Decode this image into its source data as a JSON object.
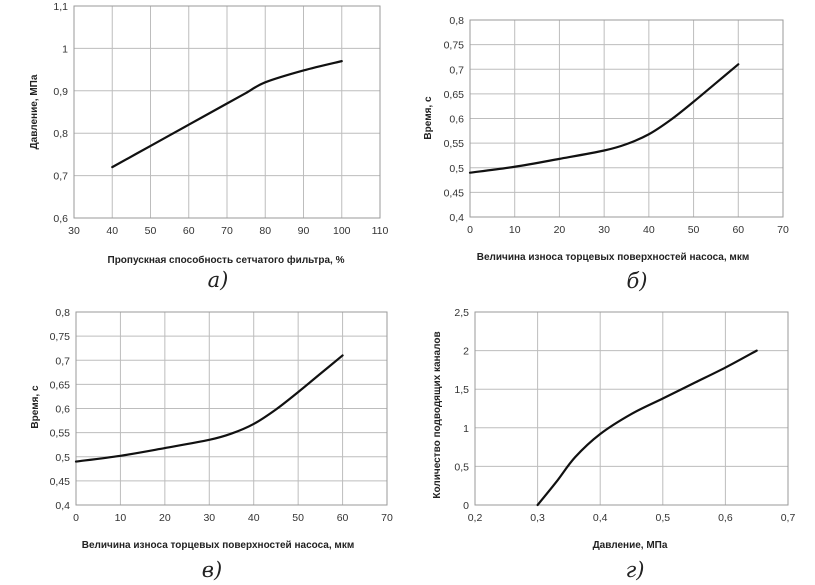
{
  "chart_data": [
    {
      "type": "line",
      "caption": "а)",
      "xlabel": "Пропускная способность сетчатого фильтра, %",
      "ylabel": "Давление, МПа",
      "xlim": [
        30,
        110
      ],
      "ylim": [
        0.6,
        1.1
      ],
      "xticks": [
        30,
        40,
        50,
        60,
        70,
        80,
        90,
        100,
        110
      ],
      "yticks": [
        0.6,
        0.7,
        0.8,
        0.9,
        1,
        1.1
      ],
      "xtick_labels": [
        "30",
        "40",
        "50",
        "60",
        "70",
        "80",
        "90",
        "100",
        "110"
      ],
      "ytick_labels": [
        "0,6",
        "0,7",
        "0,8",
        "0,9",
        "1",
        "1,1"
      ],
      "grid": true,
      "series": [
        {
          "x": [
            40,
            50,
            60,
            70,
            75,
            80,
            90,
            100
          ],
          "y": [
            0.72,
            0.77,
            0.82,
            0.87,
            0.895,
            0.92,
            0.948,
            0.97
          ]
        }
      ]
    },
    {
      "type": "line",
      "caption": "б)",
      "xlabel": "Величина износа торцевых поверхностей насоса, мкм",
      "ylabel": "Время, с",
      "xlim": [
        0,
        70
      ],
      "ylim": [
        0.4,
        0.8
      ],
      "xticks": [
        0,
        10,
        20,
        30,
        40,
        50,
        60,
        70
      ],
      "yticks": [
        0.4,
        0.45,
        0.5,
        0.55,
        0.6,
        0.65,
        0.7,
        0.75,
        0.8
      ],
      "xtick_labels": [
        "0",
        "10",
        "20",
        "30",
        "40",
        "50",
        "60",
        "70"
      ],
      "ytick_labels": [
        "0,4",
        "0,45",
        "0,5",
        "0,55",
        "0,6",
        "0,65",
        "0,7",
        "0,75",
        "0,8"
      ],
      "grid": true,
      "series": [
        {
          "x": [
            0,
            10,
            20,
            30,
            35,
            40,
            45,
            50,
            55,
            60
          ],
          "y": [
            0.49,
            0.502,
            0.518,
            0.535,
            0.548,
            0.568,
            0.598,
            0.634,
            0.672,
            0.71
          ]
        }
      ]
    },
    {
      "type": "line",
      "caption": "в)",
      "xlabel": "Величина износа торцевых поверхностей насоса, мкм",
      "ylabel": "Время, с",
      "xlim": [
        0,
        70
      ],
      "ylim": [
        0.4,
        0.8
      ],
      "xticks": [
        0,
        10,
        20,
        30,
        40,
        50,
        60,
        70
      ],
      "yticks": [
        0.4,
        0.45,
        0.5,
        0.55,
        0.6,
        0.65,
        0.7,
        0.75,
        0.8
      ],
      "xtick_labels": [
        "0",
        "10",
        "20",
        "30",
        "40",
        "50",
        "60",
        "70"
      ],
      "ytick_labels": [
        "0,4",
        "0,45",
        "0,5",
        "0,55",
        "0,6",
        "0,65",
        "0,7",
        "0,75",
        "0,8"
      ],
      "grid": true,
      "series": [
        {
          "x": [
            0,
            10,
            20,
            30,
            35,
            40,
            45,
            50,
            55,
            60
          ],
          "y": [
            0.49,
            0.502,
            0.518,
            0.535,
            0.548,
            0.568,
            0.598,
            0.634,
            0.672,
            0.71
          ]
        }
      ]
    },
    {
      "type": "line",
      "caption": "г)",
      "xlabel": "Давление, МПа",
      "ylabel": "Количество подводящих каналов",
      "xlim": [
        0.2,
        0.7
      ],
      "ylim": [
        0,
        2.5
      ],
      "xticks": [
        0.2,
        0.3,
        0.4,
        0.5,
        0.6,
        0.7
      ],
      "yticks": [
        0,
        0.5,
        1,
        1.5,
        2,
        2.5
      ],
      "xtick_labels": [
        "0,2",
        "0,3",
        "0,4",
        "0,5",
        "0,6",
        "0,7"
      ],
      "ytick_labels": [
        "0",
        "0,5",
        "1",
        "1,5",
        "2",
        "2,5"
      ],
      "grid": true,
      "series": [
        {
          "x": [
            0.3,
            0.33,
            0.36,
            0.4,
            0.45,
            0.5,
            0.55,
            0.6,
            0.65
          ],
          "y": [
            0,
            0.3,
            0.62,
            0.92,
            1.18,
            1.38,
            1.58,
            1.78,
            2.0
          ]
        }
      ]
    }
  ]
}
